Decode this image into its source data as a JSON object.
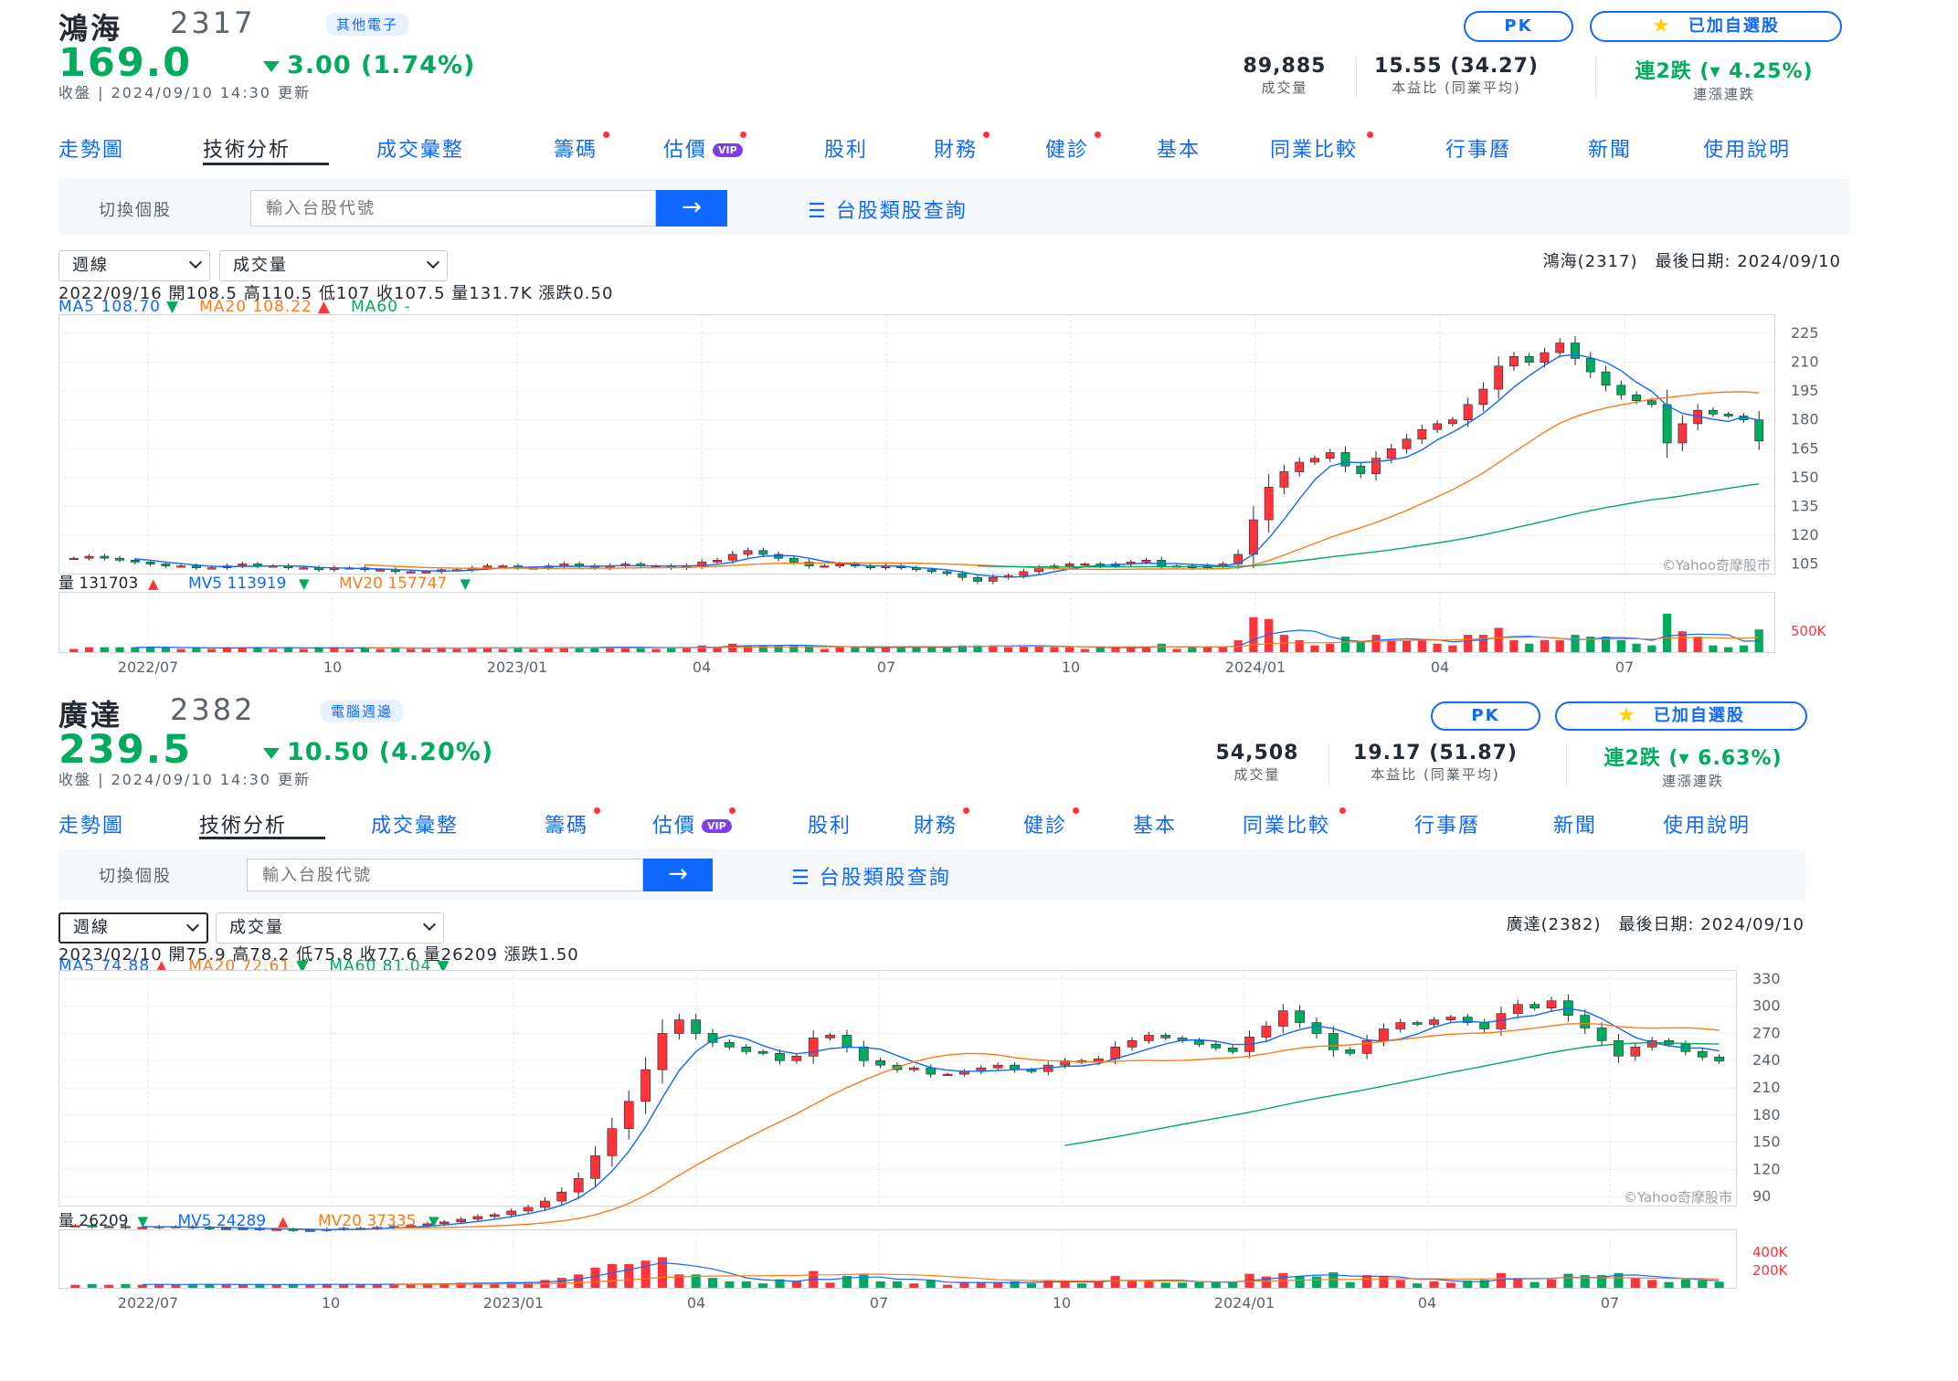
{
  "stocks": [
    {
      "name": "鴻海",
      "code": "2317",
      "category": "其他電子",
      "price": "169.0",
      "change": "3.00 (1.74%)",
      "updated": "收盤 | 2024/09/10 14:30 更新",
      "pk": "PK",
      "watchlist": "已加自選股",
      "stats": [
        {
          "value": "89,885",
          "label": "成交量"
        },
        {
          "value": "15.55 (34.27)",
          "label": "本益比 (同業平均)"
        },
        {
          "value": "連2跌 (▾ 4.25%)",
          "label": "連漲連跌"
        }
      ],
      "tabs": [
        "走勢圖",
        "技術分析",
        "成交彙整",
        "籌碼",
        "估價",
        "股利",
        "財務",
        "健診",
        "基本",
        "同業比較",
        "行事曆",
        "新聞",
        "使用說明"
      ],
      "switch_label": "切換個股",
      "search_placeholder": "輸入台股代號",
      "search_button": "→",
      "category_link": "台股類股查詢",
      "period_select": "週線",
      "indicator_select": "成交量",
      "chart_title": "鴻海(2317)　最後日期: 2024/09/10",
      "ohlc_line": "2022/09/16 開108.5 高110.5 低107 收107.5 量131.7K 漲跌0.50",
      "ma_labels": [
        {
          "text": "MA5 108.70",
          "color": "#0f69ff",
          "dir": "down"
        },
        {
          "text": "MA20 108.22",
          "color": "#ff7b16",
          "dir": "up"
        },
        {
          "text": "MA60 -",
          "color": "#00ab5e",
          "dir": "none"
        }
      ],
      "vol_labels": [
        {
          "text": "量 131703",
          "color": "#232a31",
          "dir": "up"
        },
        {
          "text": "MV5 113919",
          "color": "#0f69ff",
          "dir": "down"
        },
        {
          "text": "MV20 157747",
          "color": "#ff7b16",
          "dir": "down"
        }
      ],
      "watermark": "©Yahoo奇摩股市",
      "y_ticks": [
        225,
        210,
        195,
        180,
        165,
        150,
        135,
        120,
        105
      ],
      "vol_tick": "500K",
      "x_ticks": [
        "2022/07",
        "10",
        "2023/01",
        "04",
        "07",
        "10",
        "2024/01",
        "04",
        "07"
      ]
    },
    {
      "name": "廣達",
      "code": "2382",
      "category": "電腦週邊",
      "price": "239.5",
      "change": "10.50 (4.20%)",
      "updated": "收盤 | 2024/09/10 14:30 更新",
      "pk": "PK",
      "watchlist": "已加自選股",
      "stats": [
        {
          "value": "54,508",
          "label": "成交量"
        },
        {
          "value": "19.17 (51.87)",
          "label": "本益比 (同業平均)"
        },
        {
          "value": "連2跌 (▾ 6.63%)",
          "label": "連漲連跌"
        }
      ],
      "tabs": [
        "走勢圖",
        "技術分析",
        "成交彙整",
        "籌碼",
        "估價",
        "股利",
        "財務",
        "健診",
        "基本",
        "同業比較",
        "行事曆",
        "新聞",
        "使用說明"
      ],
      "switch_label": "切換個股",
      "search_placeholder": "輸入台股代號",
      "search_button": "→",
      "category_link": "台股類股查詢",
      "period_select": "週線",
      "indicator_select": "成交量",
      "chart_title": "廣達(2382)　最後日期: 2024/09/10",
      "ohlc_line": "2023/02/10 開75.9 高78.2 低75.8 收77.6 量26209 漲跌1.50",
      "ma_labels": [
        {
          "text": "MA5 74.88",
          "color": "#0f69ff",
          "dir": "up"
        },
        {
          "text": "MA20 72.61",
          "color": "#ff7b16",
          "dir": "down"
        },
        {
          "text": "MA60 81.04",
          "color": "#00ab5e",
          "dir": "down"
        }
      ],
      "vol_labels": [
        {
          "text": "量 26209",
          "color": "#232a31",
          "dir": "down"
        },
        {
          "text": "MV5 24289",
          "color": "#0f69ff",
          "dir": "up"
        },
        {
          "text": "MV20 37335",
          "color": "#ff7b16",
          "dir": "down"
        }
      ],
      "watermark": "©Yahoo奇摩股市",
      "y_ticks": [
        330,
        300,
        270,
        240,
        210,
        180,
        150,
        120,
        90
      ],
      "vol_tick": "400K",
      "vol_tick2": "200K",
      "x_ticks": [
        "2022/07",
        "10",
        "2023/01",
        "04",
        "07",
        "10",
        "2024/01",
        "04",
        "07"
      ]
    }
  ],
  "colors": {
    "up": "#ff333a",
    "down": "#00ab5e",
    "accent": "#0f69ff"
  },
  "chart_data": [
    {
      "type": "candlestick",
      "series_close": [
        108,
        109,
        108,
        107,
        106,
        105,
        104,
        104,
        103,
        103,
        104,
        105,
        104,
        104,
        103,
        103,
        102,
        103,
        103,
        102,
        102,
        101,
        101,
        101,
        102,
        102,
        103,
        104,
        104,
        103,
        103,
        104,
        105,
        104,
        103,
        104,
        105,
        104,
        104,
        103,
        104,
        106,
        107,
        110,
        112,
        110,
        108,
        106,
        104,
        104,
        105,
        104,
        103,
        104,
        103,
        102,
        101,
        100,
        98,
        96,
        98,
        99,
        101,
        103,
        104,
        105,
        105,
        104,
        105,
        106,
        107,
        104,
        104,
        103,
        104,
        105,
        110,
        128,
        145,
        153,
        158,
        160,
        163,
        156,
        152,
        160,
        165,
        170,
        175,
        178,
        180,
        188,
        196,
        208,
        213,
        210,
        215,
        220,
        212,
        205,
        198,
        193,
        190,
        188,
        168,
        178,
        185,
        183,
        182,
        180,
        169
      ],
      "ma_periods": [
        5,
        20,
        60
      ],
      "ylim": [
        100,
        235
      ]
    },
    {
      "type": "candlestick",
      "series_close": [
        58,
        57,
        57,
        56,
        56,
        57,
        57,
        56,
        55,
        55,
        55,
        54,
        54,
        53,
        53,
        54,
        55,
        55,
        56,
        57,
        58,
        60,
        62,
        65,
        68,
        70,
        74,
        78,
        85,
        95,
        110,
        135,
        165,
        195,
        230,
        270,
        285,
        270,
        260,
        255,
        250,
        248,
        240,
        245,
        265,
        268,
        255,
        240,
        235,
        230,
        232,
        225,
        225,
        228,
        232,
        235,
        230,
        228,
        235,
        240,
        238,
        242,
        255,
        262,
        268,
        265,
        262,
        258,
        254,
        250,
        266,
        278,
        295,
        282,
        270,
        252,
        248,
        262,
        275,
        282,
        280,
        285,
        288,
        282,
        275,
        292,
        302,
        298,
        306,
        290,
        276,
        262,
        245,
        255,
        262,
        258,
        250,
        244,
        239.5
      ],
      "ma_periods": [
        5,
        20,
        60
      ],
      "ylim": [
        80,
        340
      ]
    }
  ]
}
